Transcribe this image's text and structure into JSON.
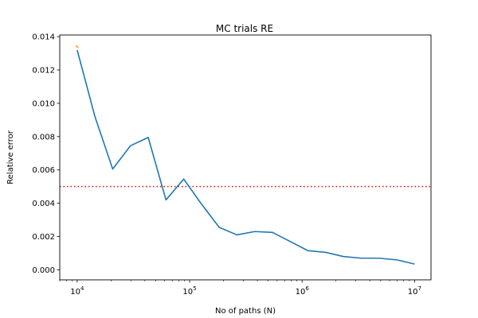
{
  "chart_data": {
    "type": "line",
    "title": "MC trials RE",
    "xlabel": "No of paths (N)",
    "ylabel": "Relative error",
    "xscale": "log",
    "xlim": [
      7000,
      14000000
    ],
    "ylim": [
      -0.0006,
      0.0141
    ],
    "xticks": [
      {
        "value": 10000,
        "base": "10",
        "exp": "4"
      },
      {
        "value": 100000,
        "base": "10",
        "exp": "5"
      },
      {
        "value": 1000000,
        "base": "10",
        "exp": "6"
      },
      {
        "value": 10000000,
        "base": "10",
        "exp": "7"
      }
    ],
    "yticks": [
      {
        "value": 0.0,
        "label": "0.000"
      },
      {
        "value": 0.002,
        "label": "0.002"
      },
      {
        "value": 0.004,
        "label": "0.004"
      },
      {
        "value": 0.006,
        "label": "0.006"
      },
      {
        "value": 0.008,
        "label": "0.008"
      },
      {
        "value": 0.01,
        "label": "0.010"
      },
      {
        "value": 0.012,
        "label": "0.012"
      },
      {
        "value": 0.014,
        "label": "0.014"
      }
    ],
    "grid": false,
    "series": [
      {
        "color": "#ff9f1c",
        "style": "solid",
        "x": [
          10000
        ],
        "y": [
          0.0134
        ]
      },
      {
        "color": "#1f77b4",
        "style": "solid",
        "x": [
          10000,
          14384,
          20691,
          29764,
          42813,
          61585,
          88587,
          127427,
          183298,
          263665,
          379269,
          545559,
          784760,
          1128838,
          1623777,
          2335721,
          3359818,
          4832930,
          6951928,
          10000000
        ],
        "y": [
          0.0132,
          0.0092,
          0.00605,
          0.00745,
          0.00795,
          0.0042,
          0.00545,
          0.00395,
          0.00255,
          0.0021,
          0.0023,
          0.00225,
          0.0017,
          0.00115,
          0.00105,
          0.0008,
          0.0007,
          0.0007,
          0.0006,
          0.00035
        ]
      }
    ],
    "reference_line": {
      "y": 0.005,
      "color": "#ff0000",
      "style": "dotted"
    }
  }
}
